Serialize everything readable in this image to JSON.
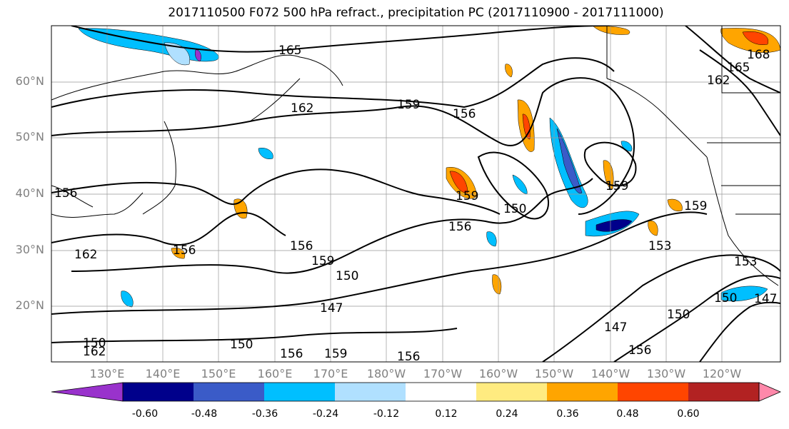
{
  "title": "2017110500 F072 500 hPa refract., precipitation PC (2017110900 - 2017111000)",
  "lat_labels": [
    "60°N",
    "50°N",
    "40°N",
    "30°N",
    "20°N"
  ],
  "lon_labels": [
    "130°E",
    "140°E",
    "150°E",
    "160°E",
    "170°E",
    "180°W",
    "170°W",
    "160°W",
    "150°W",
    "140°W",
    "130°W",
    "120°W"
  ],
  "contour_labels": [
    "165",
    "162",
    "159",
    "156",
    "156",
    "159",
    "150",
    "156",
    "153",
    "159",
    "162",
    "156",
    "159",
    "156",
    "150",
    "147",
    "150",
    "156",
    "159",
    "156",
    "147",
    "156",
    "153",
    "150",
    "147",
    "168",
    "165",
    "162",
    "162",
    "159",
    "150",
    "150"
  ],
  "colorbar": {
    "ticks": [
      "-0.60",
      "-0.48",
      "-0.36",
      "-0.24",
      "-0.12",
      "0.12",
      "0.24",
      "0.36",
      "0.48",
      "0.60"
    ],
    "colors": [
      "#9932CC",
      "#00008B",
      "#3A5BC8",
      "#00BFFF",
      "#B0E0FF",
      "#FFFFFF",
      "#FFEB80",
      "#FFA500",
      "#FF4500",
      "#B22222",
      "#FF88AA"
    ]
  }
}
